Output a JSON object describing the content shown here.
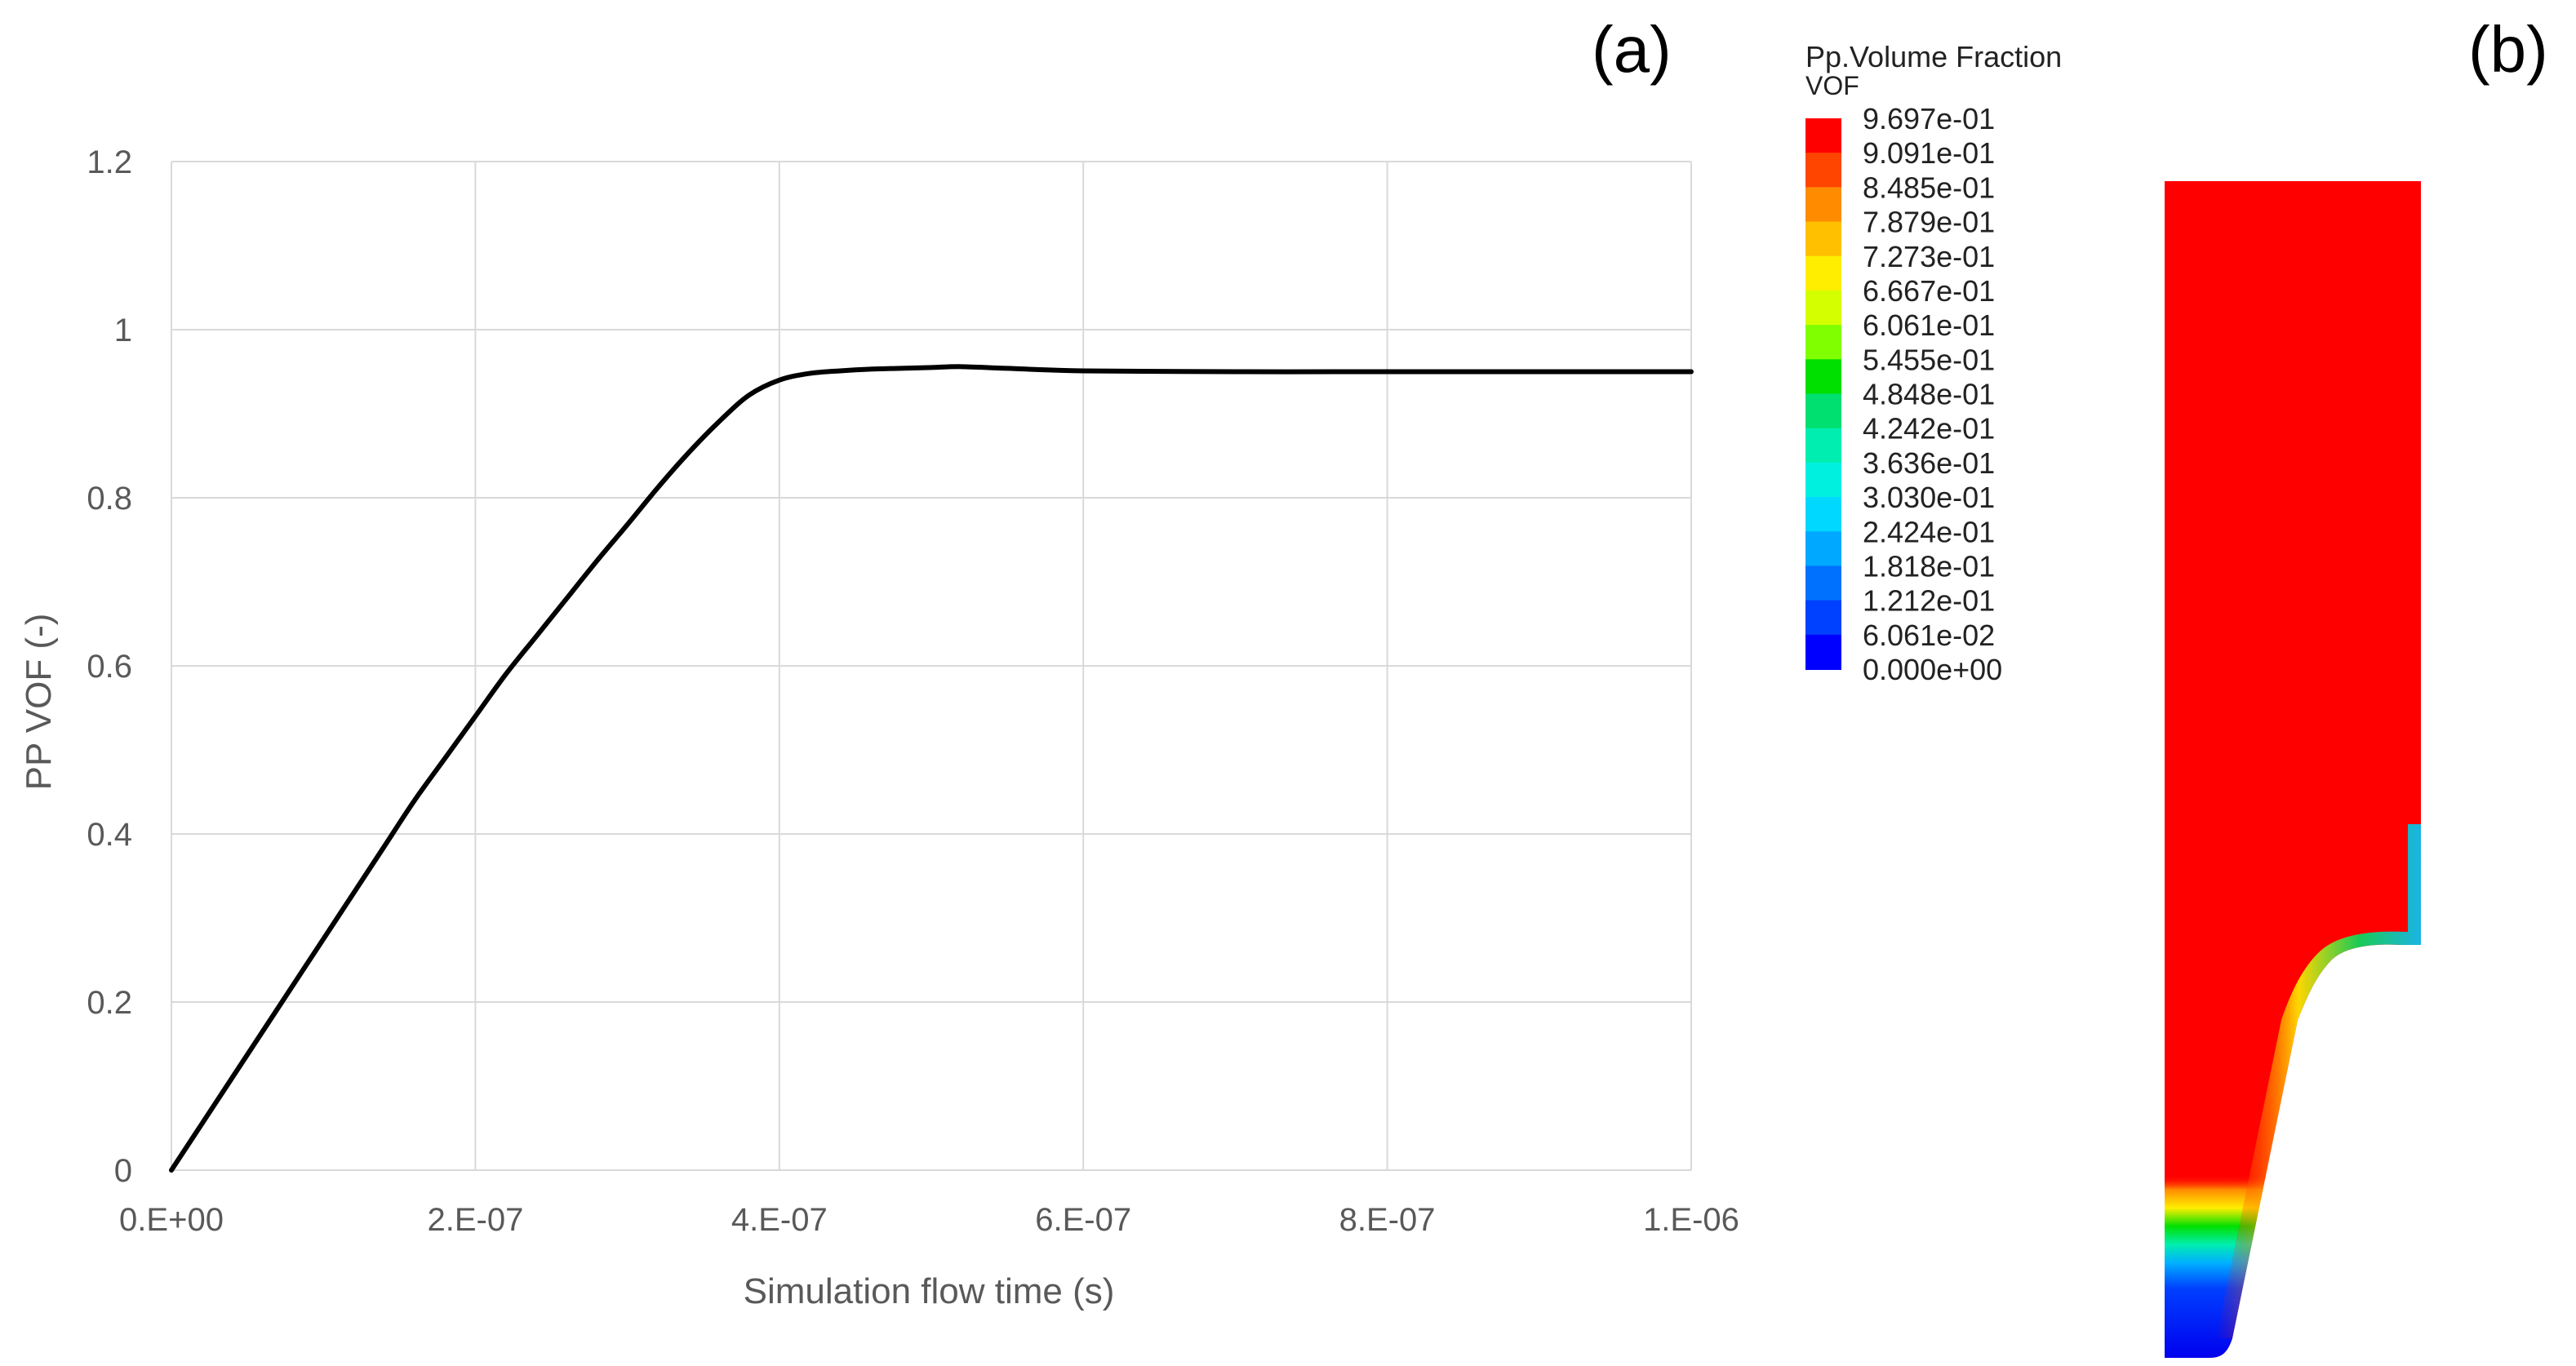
{
  "panel_a_label": "(a)",
  "panel_b_label": "(b)",
  "chart_data": {
    "type": "line",
    "title": "",
    "xlabel": "Simulation flow time (s)",
    "ylabel": "PP VOF (-)",
    "xlim": [
      0,
      1e-06
    ],
    "ylim": [
      0,
      1.2
    ],
    "x_tick_values": [
      0,
      2e-07,
      4e-07,
      6e-07,
      8e-07,
      1e-06
    ],
    "x_tick_labels": [
      "0.E+00",
      "2.E-07",
      "4.E-07",
      "6.E-07",
      "8.E-07",
      "1.E-06"
    ],
    "y_tick_values": [
      0,
      0.2,
      0.4,
      0.6,
      0.8,
      1,
      1.2
    ],
    "y_tick_labels": [
      "0",
      "0.2",
      "0.4",
      "0.6",
      "0.8",
      "1",
      "1.2"
    ],
    "grid": true,
    "series_color": "#000000",
    "series": [
      {
        "x": [
          0,
          2e-08,
          4e-08,
          6e-08,
          8e-08,
          1e-07,
          1.2e-07,
          1.4e-07,
          1.6e-07,
          1.8e-07,
          2e-07,
          2.2e-07,
          2.4e-07,
          2.6e-07,
          2.8e-07,
          3e-07,
          3.2e-07,
          3.4e-07,
          3.6e-07,
          3.8e-07,
          4e-07,
          4.2e-07,
          4.4e-07,
          4.6e-07,
          4.8e-07,
          5e-07,
          5.2e-07,
          5.5e-07,
          6e-07,
          7e-07,
          8e-07,
          9e-07,
          1e-06
        ],
        "y": [
          0,
          0.055,
          0.11,
          0.165,
          0.22,
          0.275,
          0.33,
          0.385,
          0.44,
          0.49,
          0.54,
          0.59,
          0.635,
          0.68,
          0.725,
          0.768,
          0.812,
          0.853,
          0.89,
          0.922,
          0.94,
          0.948,
          0.951,
          0.953,
          0.954,
          0.955,
          0.956,
          0.954,
          0.951,
          0.95,
          0.95,
          0.95,
          0.95
        ]
      }
    ]
  },
  "contour": {
    "legend_title_line1": "Pp.Volume Fraction",
    "legend_title_line2": "VOF",
    "legend_values": [
      "9.697e-01",
      "9.091e-01",
      "8.485e-01",
      "7.879e-01",
      "7.273e-01",
      "6.667e-01",
      "6.061e-01",
      "5.455e-01",
      "4.848e-01",
      "4.242e-01",
      "3.636e-01",
      "3.030e-01",
      "2.424e-01",
      "1.818e-01",
      "1.212e-01",
      "6.061e-02",
      "0.000e+00"
    ],
    "colormap": [
      "#ff0000",
      "#ff4500",
      "#ff8c00",
      "#ffc000",
      "#ffee00",
      "#d4ff00",
      "#80ff00",
      "#00e000",
      "#00e070",
      "#00eeb0",
      "#00f0e0",
      "#00d8ff",
      "#00a8ff",
      "#0070ff",
      "#0040ff",
      "#0000ff"
    ]
  }
}
